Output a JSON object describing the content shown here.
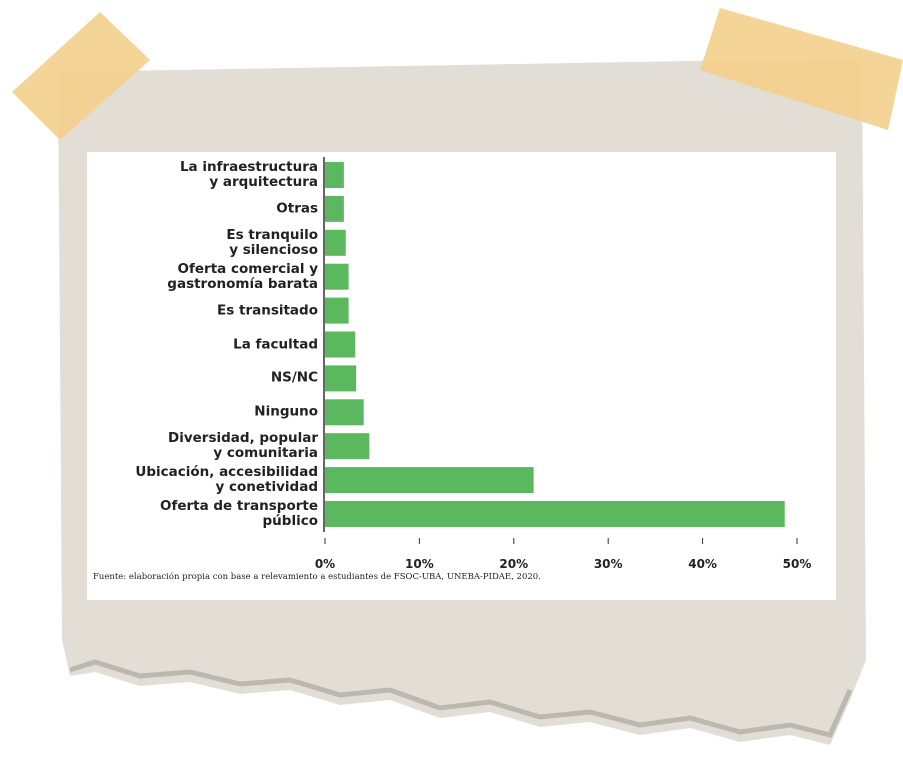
{
  "chart_data": {
    "type": "hbar",
    "categories": [
      "La infraestructura\ny arquitectura",
      "Otras",
      "Es tranquilo\ny silencioso",
      "Oferta comercial y\ngastronomía barata",
      "Es transitado",
      "La facultad",
      "NS/NC",
      "Ninguno",
      "Diversidad, popular\ny comunitaria",
      "Ubicación, accesibilidad\ny conetividad",
      "Oferta de transporte\npúblico"
    ],
    "values": [
      2.0,
      2.0,
      2.2,
      2.5,
      2.5,
      3.2,
      3.3,
      4.1,
      4.7,
      22.1,
      48.7
    ],
    "color": "#5cb85f",
    "xlim": [
      0,
      50
    ],
    "xticks": [
      {
        "value": 0,
        "label": "0%"
      },
      {
        "value": 10,
        "label": "10%"
      },
      {
        "value": 20,
        "label": "20%"
      },
      {
        "value": 30,
        "label": "30%"
      },
      {
        "value": 40,
        "label": "40%"
      },
      {
        "value": 50,
        "label": "50%"
      }
    ],
    "source": "Fuente: elaboración propia con base a relevamiento a estudiantes de FSOC-UBA, UNEBA-PIDAE, 2020."
  }
}
